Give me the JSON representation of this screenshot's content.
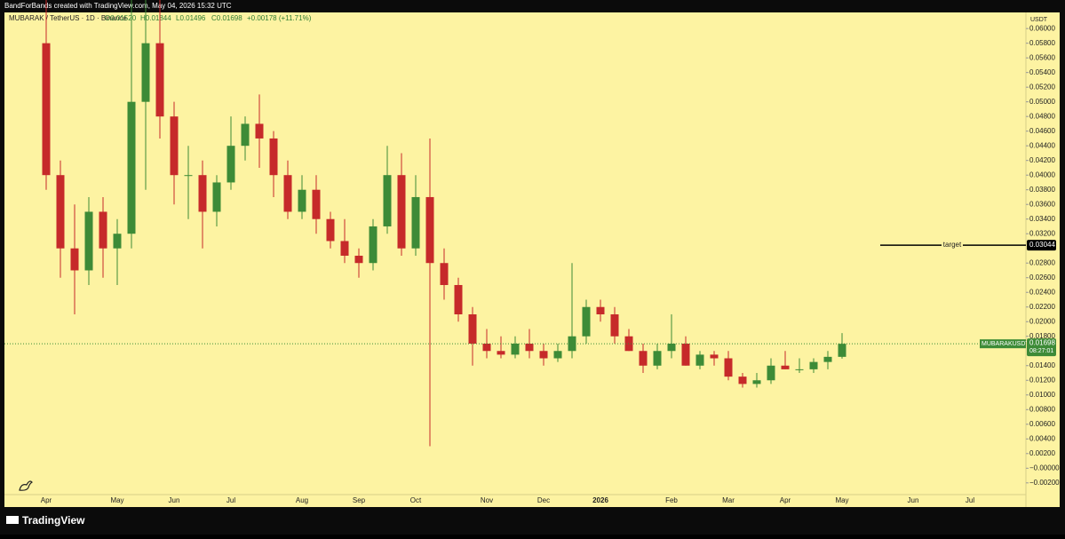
{
  "header": {
    "attribution": "BandForBands created with TradingView.com, May 04, 2026 15:32 UTC"
  },
  "footer": {
    "brand": "TradingView"
  },
  "chart_data": {
    "type": "candlestick",
    "legend": {
      "name": "MUBARAK / TetherUS · 1D · Binance",
      "ohlc": [
        "O0.01520",
        "H0.01844",
        "L0.01496",
        "C0.01698"
      ],
      "change": "+0.00178 (+11.71%)"
    },
    "currency": "USDT",
    "categories": [
      "Apr",
      null,
      null,
      null,
      null,
      "May",
      null,
      null,
      null,
      "Jun",
      null,
      null,
      null,
      "Jul",
      null,
      null,
      null,
      null,
      "Aug",
      null,
      null,
      null,
      "Sep",
      null,
      null,
      null,
      "Oct",
      null,
      null,
      null,
      null,
      "Nov",
      null,
      null,
      null,
      "Dec",
      null,
      null,
      null,
      "2026",
      null,
      null,
      null,
      null,
      "Feb",
      null,
      null,
      null,
      "Mar",
      null,
      null,
      null,
      "Apr",
      null,
      null,
      null,
      "May",
      null,
      null,
      null,
      null,
      "Jun",
      null,
      null,
      null,
      "Jul"
    ],
    "open": [
      0.058,
      0.04,
      0.03,
      0.027,
      0.035,
      0.03,
      0.032,
      0.05,
      0.058,
      0.048,
      0.04,
      0.04,
      0.035,
      0.039,
      0.044,
      0.047,
      0.045,
      0.04,
      0.035,
      0.038,
      0.034,
      0.031,
      0.029,
      0.028,
      0.033,
      0.04,
      0.03,
      0.037,
      0.028,
      0.025,
      0.021,
      0.017,
      0.016,
      0.0155,
      0.017,
      0.016,
      0.015,
      0.016,
      0.018,
      0.022,
      0.021,
      0.018,
      0.016,
      0.014,
      0.016,
      0.017,
      0.014,
      0.0155,
      0.015,
      0.0125,
      0.0115,
      0.012,
      0.014,
      0.0135,
      0.0135,
      0.0145,
      0.0152,
      null,
      null,
      null,
      null,
      null,
      null,
      null,
      null,
      null
    ],
    "high": [
      0.064,
      0.042,
      0.036,
      0.037,
      0.037,
      0.034,
      0.064,
      0.066,
      0.064,
      0.05,
      0.044,
      0.042,
      0.04,
      0.048,
      0.048,
      0.051,
      0.046,
      0.042,
      0.04,
      0.04,
      0.035,
      0.034,
      0.03,
      0.034,
      0.044,
      0.043,
      0.04,
      0.045,
      0.03,
      0.026,
      0.022,
      0.019,
      0.018,
      0.018,
      0.019,
      0.017,
      0.017,
      0.028,
      0.023,
      0.023,
      0.022,
      0.019,
      0.017,
      0.017,
      0.021,
      0.018,
      0.016,
      0.016,
      0.016,
      0.013,
      0.013,
      0.015,
      0.016,
      0.015,
      0.015,
      0.016,
      0.01844,
      null,
      null,
      null,
      null,
      null,
      null,
      null,
      null,
      null
    ],
    "low": [
      0.038,
      0.026,
      0.021,
      0.025,
      0.026,
      0.025,
      0.03,
      0.038,
      0.045,
      0.036,
      0.034,
      0.03,
      0.033,
      0.038,
      0.042,
      0.041,
      0.037,
      0.034,
      0.034,
      0.032,
      0.03,
      0.028,
      0.026,
      0.027,
      0.032,
      0.029,
      0.029,
      0.003,
      0.023,
      0.02,
      0.014,
      0.015,
      0.015,
      0.015,
      0.015,
      0.014,
      0.0145,
      0.015,
      0.017,
      0.02,
      0.017,
      0.016,
      0.013,
      0.0135,
      0.015,
      0.014,
      0.0135,
      0.014,
      0.012,
      0.011,
      0.011,
      0.0115,
      0.0135,
      0.013,
      0.013,
      0.0135,
      0.01496,
      null,
      null,
      null,
      null,
      null,
      null,
      null,
      null,
      null
    ],
    "close": [
      0.04,
      0.03,
      0.027,
      0.035,
      0.03,
      0.032,
      0.05,
      0.058,
      0.048,
      0.04,
      0.04,
      0.035,
      0.039,
      0.044,
      0.047,
      0.045,
      0.04,
      0.035,
      0.038,
      0.034,
      0.031,
      0.029,
      0.028,
      0.033,
      0.04,
      0.03,
      0.037,
      0.028,
      0.025,
      0.021,
      0.017,
      0.016,
      0.0155,
      0.017,
      0.016,
      0.015,
      0.016,
      0.018,
      0.022,
      0.021,
      0.018,
      0.016,
      0.014,
      0.016,
      0.017,
      0.014,
      0.0155,
      0.015,
      0.0125,
      0.0115,
      0.012,
      0.014,
      0.0135,
      0.0135,
      0.0145,
      0.0152,
      0.01698,
      null,
      null,
      null,
      null,
      null,
      null,
      null,
      null,
      null
    ],
    "up_color": "#3d8b37",
    "down_color": "#c62a2a",
    "ylim": [
      -0.0036,
      0.0622
    ],
    "yticks": [
      {
        "value": 0.06,
        "label": "0.06000"
      },
      {
        "value": 0.058,
        "label": "0.05800"
      },
      {
        "value": 0.056,
        "label": "0.05600"
      },
      {
        "value": 0.054,
        "label": "0.05400"
      },
      {
        "value": 0.052,
        "label": "0.05200"
      },
      {
        "value": 0.05,
        "label": "0.05000"
      },
      {
        "value": 0.048,
        "label": "0.04800"
      },
      {
        "value": 0.046,
        "label": "0.04600"
      },
      {
        "value": 0.044,
        "label": "0.04400"
      },
      {
        "value": 0.042,
        "label": "0.04200"
      },
      {
        "value": 0.04,
        "label": "0.04000"
      },
      {
        "value": 0.038,
        "label": "0.03800"
      },
      {
        "value": 0.036,
        "label": "0.03600"
      },
      {
        "value": 0.034,
        "label": "0.03400"
      },
      {
        "value": 0.032,
        "label": "0.03200"
      },
      {
        "value": 0.028,
        "label": "0.02800"
      },
      {
        "value": 0.026,
        "label": "0.02600"
      },
      {
        "value": 0.024,
        "label": "0.02400"
      },
      {
        "value": 0.022,
        "label": "0.02200"
      },
      {
        "value": 0.02,
        "label": "0.02000"
      },
      {
        "value": 0.018,
        "label": "0.01800"
      },
      {
        "value": 0.014,
        "label": "0.01400"
      },
      {
        "value": 0.012,
        "label": "0.01200"
      },
      {
        "value": 0.01,
        "label": "0.01000"
      },
      {
        "value": 0.008,
        "label": "0.00800"
      },
      {
        "value": 0.006,
        "label": "0.00600"
      },
      {
        "value": 0.004,
        "label": "0.00400"
      },
      {
        "value": 0.002,
        "label": "0.00200"
      },
      {
        "value": 0,
        "label": "−0.00000"
      },
      {
        "value": -0.002,
        "label": "−0.00200"
      }
    ],
    "target": {
      "label": "target",
      "value": 0.03044
    },
    "last_price": {
      "symbol": "MUBARAKUSDT",
      "value": 0.01698,
      "countdown": "08:27:01"
    }
  }
}
